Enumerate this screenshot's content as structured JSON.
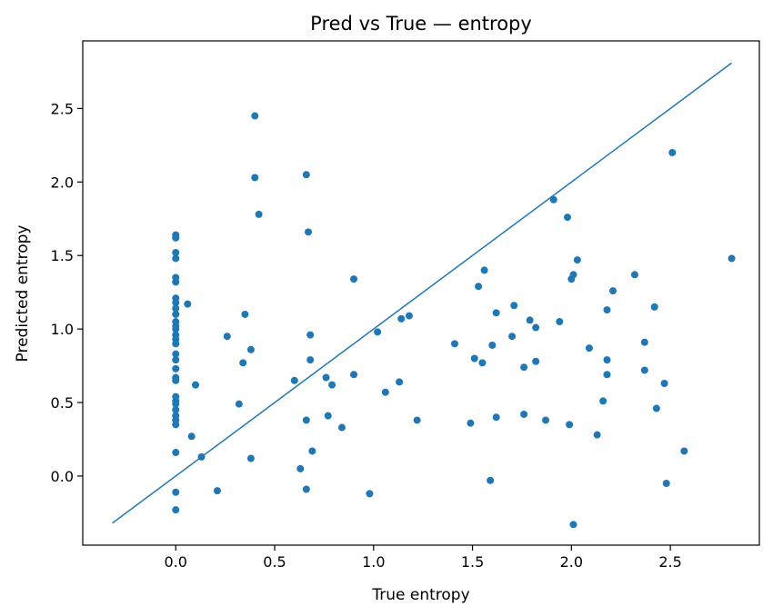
{
  "colors": {
    "series": "#1f77b4",
    "axes": "#000000",
    "background": "#ffffff"
  },
  "chart_data": {
    "type": "scatter",
    "title": "Pred vs True — entropy",
    "xlabel": "True entropy",
    "ylabel": "Predicted entropy",
    "xlim": [
      -0.47,
      2.95
    ],
    "ylim": [
      -0.47,
      2.96
    ],
    "xticks": [
      0.0,
      0.5,
      1.0,
      1.5,
      2.0,
      2.5
    ],
    "yticks": [
      0.0,
      0.5,
      1.0,
      1.5,
      2.0,
      2.5
    ],
    "xtick_labels": [
      "0.0",
      "0.5",
      "1.0",
      "1.5",
      "2.0",
      "2.5"
    ],
    "ytick_labels": [
      "0.0",
      "0.5",
      "1.0",
      "1.5",
      "2.0",
      "2.5"
    ],
    "grid": false,
    "legend": false,
    "reference_line": {
      "from": [
        -0.32,
        -0.32
      ],
      "to": [
        2.81,
        2.81
      ]
    },
    "points": [
      [
        0.0,
        1.64
      ],
      [
        0.0,
        1.62
      ],
      [
        0.0,
        1.52
      ],
      [
        0.0,
        1.48
      ],
      [
        0.0,
        1.35
      ],
      [
        0.0,
        1.32
      ],
      [
        0.0,
        1.21
      ],
      [
        0.0,
        1.18
      ],
      [
        0.0,
        1.14
      ],
      [
        0.0,
        1.1
      ],
      [
        0.0,
        1.05
      ],
      [
        0.0,
        1.02
      ],
      [
        0.0,
        1.0
      ],
      [
        0.0,
        0.96
      ],
      [
        0.0,
        0.93
      ],
      [
        0.0,
        0.9
      ],
      [
        0.0,
        0.83
      ],
      [
        0.0,
        0.79
      ],
      [
        0.0,
        0.73
      ],
      [
        0.0,
        0.67
      ],
      [
        0.0,
        0.65
      ],
      [
        0.0,
        0.54
      ],
      [
        0.0,
        0.51
      ],
      [
        0.0,
        0.49
      ],
      [
        0.0,
        0.45
      ],
      [
        0.0,
        0.41
      ],
      [
        0.0,
        0.38
      ],
      [
        0.0,
        0.35
      ],
      [
        0.0,
        0.16
      ],
      [
        0.0,
        -0.11
      ],
      [
        0.0,
        -0.23
      ],
      [
        0.06,
        1.17
      ],
      [
        0.08,
        0.27
      ],
      [
        0.1,
        0.62
      ],
      [
        0.13,
        0.13
      ],
      [
        0.21,
        -0.1
      ],
      [
        0.26,
        0.95
      ],
      [
        0.32,
        0.49
      ],
      [
        0.34,
        0.77
      ],
      [
        0.35,
        1.1
      ],
      [
        0.38,
        0.86
      ],
      [
        0.38,
        0.12
      ],
      [
        0.4,
        2.45
      ],
      [
        0.4,
        2.03
      ],
      [
        0.42,
        1.78
      ],
      [
        0.6,
        0.65
      ],
      [
        0.63,
        0.05
      ],
      [
        0.66,
        2.05
      ],
      [
        0.66,
        0.38
      ],
      [
        0.66,
        -0.09
      ],
      [
        0.67,
        1.66
      ],
      [
        0.68,
        0.96
      ],
      [
        0.68,
        0.79
      ],
      [
        0.69,
        0.17
      ],
      [
        0.76,
        0.67
      ],
      [
        0.77,
        0.41
      ],
      [
        0.79,
        0.62
      ],
      [
        0.84,
        0.33
      ],
      [
        0.9,
        1.34
      ],
      [
        0.9,
        0.69
      ],
      [
        0.98,
        -0.12
      ],
      [
        1.02,
        0.98
      ],
      [
        1.06,
        0.57
      ],
      [
        1.13,
        0.64
      ],
      [
        1.14,
        1.07
      ],
      [
        1.18,
        1.09
      ],
      [
        1.22,
        0.38
      ],
      [
        1.41,
        0.9
      ],
      [
        1.49,
        0.36
      ],
      [
        1.51,
        0.8
      ],
      [
        1.53,
        1.29
      ],
      [
        1.55,
        0.77
      ],
      [
        1.56,
        1.4
      ],
      [
        1.59,
        -0.03
      ],
      [
        1.6,
        0.89
      ],
      [
        1.62,
        1.11
      ],
      [
        1.62,
        0.4
      ],
      [
        1.7,
        0.95
      ],
      [
        1.71,
        1.16
      ],
      [
        1.76,
        0.74
      ],
      [
        1.76,
        0.42
      ],
      [
        1.79,
        1.06
      ],
      [
        1.82,
        1.01
      ],
      [
        1.82,
        0.78
      ],
      [
        1.87,
        0.38
      ],
      [
        1.91,
        1.88
      ],
      [
        1.94,
        1.05
      ],
      [
        1.98,
        1.76
      ],
      [
        1.99,
        0.35
      ],
      [
        2.0,
        1.34
      ],
      [
        2.01,
        1.37
      ],
      [
        2.01,
        -0.33
      ],
      [
        2.03,
        1.47
      ],
      [
        2.09,
        0.87
      ],
      [
        2.13,
        0.28
      ],
      [
        2.16,
        0.51
      ],
      [
        2.18,
        1.13
      ],
      [
        2.18,
        0.79
      ],
      [
        2.18,
        0.69
      ],
      [
        2.21,
        1.26
      ],
      [
        2.32,
        1.37
      ],
      [
        2.37,
        0.91
      ],
      [
        2.37,
        0.72
      ],
      [
        2.42,
        1.15
      ],
      [
        2.43,
        0.46
      ],
      [
        2.47,
        0.63
      ],
      [
        2.48,
        -0.05
      ],
      [
        2.51,
        2.2
      ],
      [
        2.57,
        0.17
      ],
      [
        2.81,
        1.48
      ]
    ]
  }
}
